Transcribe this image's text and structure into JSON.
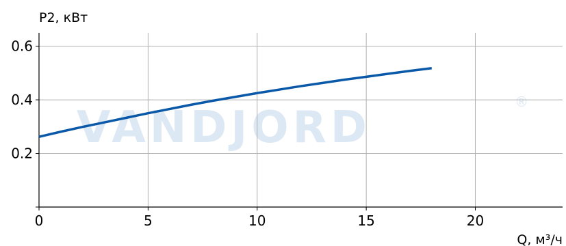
{
  "chart_data": {
    "type": "line",
    "title": "",
    "ylabel": "P2, кВт",
    "xlabel": "Q, м³/ч",
    "xlim": [
      0,
      24
    ],
    "ylim": [
      0,
      0.65
    ],
    "xticks": [
      0,
      5,
      10,
      15,
      20
    ],
    "yticks": [
      0.2,
      0.4,
      0.6
    ],
    "ytick_labels": [
      "0.2",
      "0.4",
      "0.6"
    ],
    "grid": true,
    "watermark": "VANDJORD",
    "watermark_mark": "®",
    "series": [
      {
        "color": "#0a58a8",
        "x": [
          0,
          1,
          2,
          3,
          4,
          5,
          6,
          7,
          8,
          9,
          10,
          11,
          12,
          13,
          14,
          15,
          16,
          17,
          18
        ],
        "y": [
          0.262,
          0.281,
          0.299,
          0.316,
          0.333,
          0.35,
          0.366,
          0.382,
          0.397,
          0.411,
          0.425,
          0.438,
          0.451,
          0.463,
          0.475,
          0.486,
          0.497,
          0.508,
          0.518
        ]
      }
    ]
  }
}
